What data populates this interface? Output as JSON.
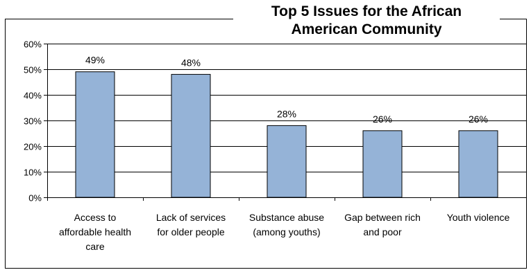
{
  "chart_data": {
    "type": "bar",
    "title_lines": [
      "Top 5 Issues for the African",
      "American Community"
    ],
    "categories": [
      [
        "Access to",
        "affordable health",
        "care"
      ],
      [
        "Lack of services",
        "for older people"
      ],
      [
        "Substance abuse",
        "(among youths)"
      ],
      [
        "Gap between rich",
        "and poor"
      ],
      [
        "Youth violence"
      ]
    ],
    "values": [
      0.49,
      0.48,
      0.28,
      0.26,
      0.26
    ],
    "data_labels": [
      "49%",
      "48%",
      "28%",
      "26%",
      "26%"
    ],
    "y_ticks": [
      "0%",
      "10%",
      "20%",
      "30%",
      "40%",
      "50%",
      "60%"
    ],
    "ylim": [
      0,
      0.6
    ],
    "grid": true,
    "bar_color": "#95B3D7",
    "bar_edge_color": "#000000"
  }
}
